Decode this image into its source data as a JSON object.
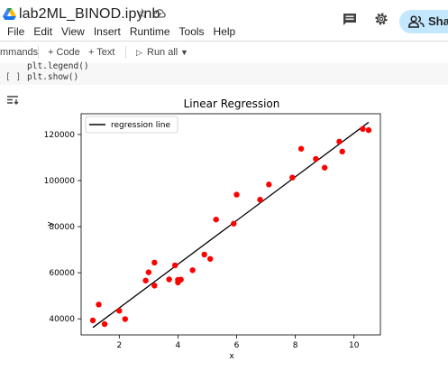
{
  "header": {
    "notebook_title": "lab2ML_BINOD.ipynb",
    "menu": [
      "File",
      "Edit",
      "View",
      "Insert",
      "Runtime",
      "Tools",
      "Help"
    ],
    "share_label": "Share",
    "icons": [
      "drive-icon",
      "star-icon",
      "cloud-icon",
      "comment-icon",
      "gear-icon",
      "people-icon"
    ]
  },
  "toolbar": {
    "commands_label": "mmands",
    "code_label": "+ Code",
    "text_label": "+ Text",
    "run_all_label": "Run all"
  },
  "cell": {
    "line1": "plt.legend()",
    "line2": "plt.show()",
    "bracket": "[ ]"
  },
  "chart_data": {
    "type": "scatter",
    "title": "Linear Regression",
    "xlabel": "x",
    "ylabel": "y",
    "xlim": [
      0.7,
      10.9
    ],
    "ylim": [
      33000,
      129000
    ],
    "xticks": [
      2,
      4,
      6,
      8,
      10
    ],
    "yticks": [
      40000,
      60000,
      80000,
      100000,
      120000
    ],
    "legend": {
      "placement": "upper-left",
      "entries": [
        "regression line"
      ]
    },
    "grid": false,
    "series": [
      {
        "kind": "points",
        "color": "#ff0000",
        "x": [
          1.1,
          1.3,
          1.5,
          2.0,
          2.2,
          2.9,
          3.0,
          3.2,
          3.2,
          3.7,
          3.9,
          4.0,
          4.0,
          4.1,
          4.5,
          4.9,
          5.1,
          5.3,
          5.9,
          6.0,
          6.8,
          7.1,
          7.9,
          8.2,
          8.7,
          9.0,
          9.5,
          9.6,
          10.3,
          10.5
        ],
        "y": [
          39300,
          46200,
          37700,
          43500,
          39900,
          56600,
          60200,
          54400,
          64400,
          57100,
          63200,
          55800,
          56900,
          57000,
          61100,
          67900,
          66000,
          83100,
          81300,
          93900,
          91700,
          98300,
          101300,
          113800,
          109400,
          105600,
          116900,
          112600,
          122400,
          121900
        ]
      },
      {
        "kind": "line",
        "name": "regression line",
        "color": "#000000",
        "x": [
          1.1,
          10.5
        ],
        "y": [
          36200,
          125300
        ]
      }
    ]
  }
}
